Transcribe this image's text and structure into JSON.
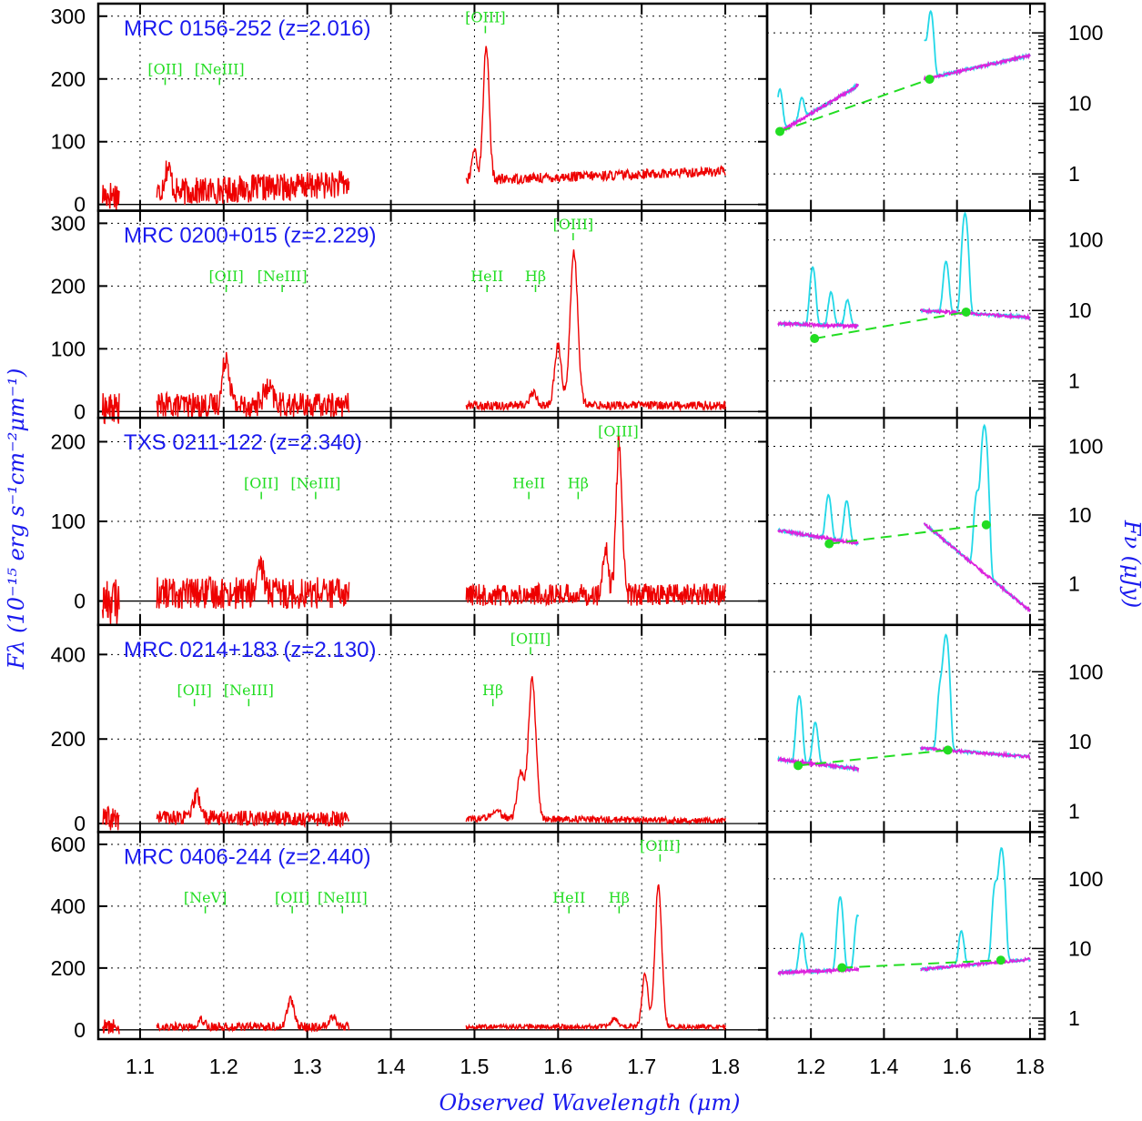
{
  "figure": {
    "xlabel": "Observed Wavelength (μm)",
    "ylabel_left": "Fλ (10⁻¹⁵ erg s⁻¹cm⁻²μm⁻¹)",
    "ylabel_right": "Fν (μJy)",
    "colors": {
      "spectrum": "#ee0000",
      "label": "#1a1aee",
      "lines": "#22dd22",
      "sed": "#dd22dd",
      "sed_lines": "#22d8e8",
      "fit": "#22dd22"
    }
  },
  "chart_data": [
    {
      "type": "line",
      "panel": "spectrum",
      "title": "MRC 0156-252  (z=2.016)",
      "x_ticks": [
        1.1,
        1.2,
        1.3,
        1.4,
        1.5,
        1.6,
        1.7,
        1.8
      ],
      "xlim": [
        1.05,
        1.85
      ],
      "ylim": [
        -10,
        320
      ],
      "y_ticks": [
        0,
        100,
        200,
        300
      ],
      "line_labels": [
        {
          "text": "[OII]",
          "x": 1.13
        },
        {
          "text": "[NeIII]",
          "x": 1.195
        },
        {
          "text": "[OIII]",
          "x": 1.513
        }
      ],
      "segments": [
        {
          "x_range": [
            1.055,
            1.075
          ],
          "base": 15,
          "noise": 25,
          "peaks": []
        },
        {
          "x_range": [
            1.12,
            1.35
          ],
          "base": 18,
          "noise": 22,
          "slope": 15,
          "peaks": [
            {
              "x": 1.133,
              "h": 40,
              "w": 0.004
            }
          ]
        },
        {
          "x_range": [
            1.49,
            1.8
          ],
          "base": 38,
          "noise": 8,
          "slope": 15,
          "peaks": [
            {
              "x": 1.5,
              "h": 50,
              "w": 0.003
            },
            {
              "x": 1.514,
              "h": 215,
              "w": 0.0035
            }
          ]
        }
      ]
    },
    {
      "type": "line",
      "panel": "spectrum",
      "title": "MRC 0200+015 (z=2.229)",
      "x_ticks": [
        1.1,
        1.2,
        1.3,
        1.4,
        1.5,
        1.6,
        1.7,
        1.8
      ],
      "xlim": [
        1.05,
        1.85
      ],
      "ylim": [
        -10,
        320
      ],
      "y_ticks": [
        0,
        100,
        200,
        300
      ],
      "line_labels": [
        {
          "text": "[OII]",
          "x": 1.203
        },
        {
          "text": "[NeIII]",
          "x": 1.27
        },
        {
          "text": "HeII",
          "x": 1.515
        },
        {
          "text": "Hβ",
          "x": 1.573
        },
        {
          "text": "[OIII]",
          "x": 1.618
        }
      ],
      "segments": [
        {
          "x_range": [
            1.055,
            1.075
          ],
          "base": 5,
          "noise": 25,
          "peaks": []
        },
        {
          "x_range": [
            1.12,
            1.35
          ],
          "base": 10,
          "noise": 20,
          "slope": 0,
          "peaks": [
            {
              "x": 1.203,
              "h": 80,
              "w": 0.004
            },
            {
              "x": 1.253,
              "h": 25,
              "w": 0.006
            }
          ]
        },
        {
          "x_range": [
            1.49,
            1.8
          ],
          "base": 10,
          "noise": 7,
          "slope": 0,
          "peaks": [
            {
              "x": 1.57,
              "h": 20,
              "w": 0.004
            },
            {
              "x": 1.6,
              "h": 95,
              "w": 0.004
            },
            {
              "x": 1.619,
              "h": 245,
              "w": 0.0045
            }
          ]
        }
      ]
    },
    {
      "type": "line",
      "panel": "spectrum",
      "title": "TXS 0211-122   (z=2.340)",
      "x_ticks": [
        1.1,
        1.2,
        1.3,
        1.4,
        1.5,
        1.6,
        1.7,
        1.8
      ],
      "xlim": [
        1.05,
        1.85
      ],
      "ylim": [
        -30,
        230
      ],
      "y_ticks": [
        0,
        100,
        200
      ],
      "line_labels": [
        {
          "text": "[OII]",
          "x": 1.245
        },
        {
          "text": "[NeIII]",
          "x": 1.31
        },
        {
          "text": "HeII",
          "x": 1.565
        },
        {
          "text": "Hβ",
          "x": 1.624
        },
        {
          "text": "[OIII]",
          "x": 1.672
        }
      ],
      "segments": [
        {
          "x_range": [
            1.055,
            1.075
          ],
          "base": 0,
          "noise": 30,
          "peaks": []
        },
        {
          "x_range": [
            1.12,
            1.35
          ],
          "base": 10,
          "noise": 20,
          "slope": 0,
          "peaks": [
            {
              "x": 1.245,
              "h": 30,
              "w": 0.004
            }
          ]
        },
        {
          "x_range": [
            1.49,
            1.8
          ],
          "base": 8,
          "noise": 14,
          "slope": 0,
          "peaks": [
            {
              "x": 1.657,
              "h": 55,
              "w": 0.003
            },
            {
              "x": 1.673,
              "h": 195,
              "w": 0.0035
            }
          ]
        }
      ]
    },
    {
      "type": "line",
      "panel": "spectrum",
      "title": "MRC 0214+183 (z=2.130)",
      "x_ticks": [
        1.1,
        1.2,
        1.3,
        1.4,
        1.5,
        1.6,
        1.7,
        1.8
      ],
      "xlim": [
        1.05,
        1.85
      ],
      "ylim": [
        -20,
        470
      ],
      "y_ticks": [
        0,
        200,
        400
      ],
      "line_labels": [
        {
          "text": "[OII]",
          "x": 1.165
        },
        {
          "text": "[NeIII]",
          "x": 1.23
        },
        {
          "text": "Hβ",
          "x": 1.522
        },
        {
          "text": "[OIII]",
          "x": 1.567
        }
      ],
      "segments": [
        {
          "x_range": [
            1.055,
            1.075
          ],
          "base": 10,
          "noise": 30,
          "peaks": []
        },
        {
          "x_range": [
            1.12,
            1.35
          ],
          "base": 15,
          "noise": 18,
          "slope": -5,
          "peaks": [
            {
              "x": 1.168,
              "h": 55,
              "w": 0.004
            }
          ]
        },
        {
          "x_range": [
            1.49,
            1.8
          ],
          "base": 12,
          "noise": 8,
          "slope": -5,
          "peaks": [
            {
              "x": 1.555,
              "h": 110,
              "w": 0.004
            },
            {
              "x": 1.569,
              "h": 330,
              "w": 0.0045
            },
            {
              "x": 1.525,
              "h": 20,
              "w": 0.006
            }
          ]
        }
      ]
    },
    {
      "type": "line",
      "panel": "spectrum",
      "title": "MRC 0406-244  (z=2.440)",
      "x_ticks": [
        1.1,
        1.2,
        1.3,
        1.4,
        1.5,
        1.6,
        1.7,
        1.8
      ],
      "xlim": [
        1.05,
        1.85
      ],
      "ylim": [
        -30,
        640
      ],
      "y_ticks": [
        0,
        200,
        400,
        600
      ],
      "line_labels": [
        {
          "text": "[NeV]",
          "x": 1.178
        },
        {
          "text": "[OII]",
          "x": 1.282
        },
        {
          "text": "[NeIII]",
          "x": 1.342
        },
        {
          "text": "HeII",
          "x": 1.613
        },
        {
          "text": "Hβ",
          "x": 1.673
        },
        {
          "text": "[OIII]",
          "x": 1.722
        }
      ],
      "segments": [
        {
          "x_range": [
            1.055,
            1.075
          ],
          "base": 10,
          "noise": 25,
          "peaks": []
        },
        {
          "x_range": [
            1.12,
            1.35
          ],
          "base": 10,
          "noise": 14,
          "slope": 0,
          "peaks": [
            {
              "x": 1.28,
              "h": 90,
              "w": 0.004
            },
            {
              "x": 1.33,
              "h": 35,
              "w": 0.004
            },
            {
              "x": 1.173,
              "h": 25,
              "w": 0.004
            }
          ]
        },
        {
          "x_range": [
            1.49,
            1.8
          ],
          "base": 10,
          "noise": 8,
          "slope": 0,
          "peaks": [
            {
              "x": 1.668,
              "h": 25,
              "w": 0.004
            },
            {
              "x": 1.704,
              "h": 170,
              "w": 0.0035
            },
            {
              "x": 1.72,
              "h": 460,
              "w": 0.004
            }
          ]
        }
      ]
    },
    {
      "type": "line",
      "panel": "sed",
      "x_ticks": [
        1.2,
        1.4,
        1.6,
        1.8
      ],
      "xlim": [
        1.08,
        1.84
      ],
      "y_scale": "log",
      "y_ticks": [
        1,
        10,
        100
      ],
      "rows": [
        {
          "ylim": [
            0.3,
            260
          ],
          "fit": [
            [
              1.115,
              4.0
            ],
            [
              1.525,
              22
            ]
          ],
          "seg_a": {
            "x": [
              1.11,
              1.33
            ],
            "y": [
              3.8,
              18
            ]
          },
          "seg_b": {
            "x": [
              1.51,
              1.8
            ],
            "y": [
              22,
              48
            ]
          },
          "peaks": [
            {
              "x": 1.115,
              "h": 12
            },
            {
              "x": 1.175,
              "h": 6
            },
            {
              "x": 1.51,
              "h": 55
            },
            {
              "x": 1.528,
              "h": 180
            }
          ]
        },
        {
          "ylim": [
            0.3,
            260
          ],
          "fit": [
            [
              1.21,
              4.0
            ],
            [
              1.625,
              9.5
            ]
          ],
          "seg_a": {
            "x": [
              1.11,
              1.33
            ],
            "y": [
              6.5,
              6.0
            ]
          },
          "seg_b": {
            "x": [
              1.5,
              1.8
            ],
            "y": [
              10,
              8
            ]
          },
          "peaks": [
            {
              "x": 1.205,
              "h": 35
            },
            {
              "x": 1.255,
              "h": 12
            },
            {
              "x": 1.3,
              "h": 8
            },
            {
              "x": 1.57,
              "h": 40
            },
            {
              "x": 1.622,
              "h": 230
            }
          ]
        },
        {
          "ylim": [
            0.25,
            260
          ],
          "fit": [
            [
              1.25,
              3.8
            ],
            [
              1.68,
              7.2
            ]
          ],
          "seg_a": {
            "x": [
              1.11,
              1.33
            ],
            "y": [
              6.0,
              3.8
            ]
          },
          "seg_b": {
            "x": [
              1.51,
              1.8
            ],
            "y": [
              7.5,
              0.4
            ]
          },
          "peaks": [
            {
              "x": 1.248,
              "h": 15
            },
            {
              "x": 1.298,
              "h": 12
            },
            {
              "x": 1.655,
              "h": 20
            },
            {
              "x": 1.675,
              "h": 200
            }
          ]
        },
        {
          "ylim": [
            0.5,
            470
          ],
          "fit": [
            [
              1.165,
              4.5
            ],
            [
              1.575,
              7.5
            ]
          ],
          "seg_a": {
            "x": [
              1.11,
              1.33
            ],
            "y": [
              5.5,
              4.0
            ]
          },
          "seg_b": {
            "x": [
              1.5,
              1.8
            ],
            "y": [
              8.0,
              6.0
            ]
          },
          "peaks": [
            {
              "x": 1.168,
              "h": 40
            },
            {
              "x": 1.212,
              "h": 14
            },
            {
              "x": 1.555,
              "h": 60
            },
            {
              "x": 1.57,
              "h": 330
            }
          ]
        },
        {
          "ylim": [
            0.5,
            470
          ],
          "fit": [
            [
              1.285,
              5.3
            ],
            [
              1.72,
              6.8
            ]
          ],
          "seg_a": {
            "x": [
              1.11,
              1.33
            ],
            "y": [
              4.5,
              5.0
            ]
          },
          "seg_b": {
            "x": [
              1.5,
              1.8
            ],
            "y": [
              5.0,
              7.0
            ]
          },
          "peaks": [
            {
              "x": 1.175,
              "h": 12
            },
            {
              "x": 1.28,
              "h": 50
            },
            {
              "x": 1.328,
              "h": 25
            },
            {
              "x": 1.612,
              "h": 12
            },
            {
              "x": 1.705,
              "h": 80
            },
            {
              "x": 1.722,
              "h": 270
            }
          ]
        }
      ]
    }
  ]
}
